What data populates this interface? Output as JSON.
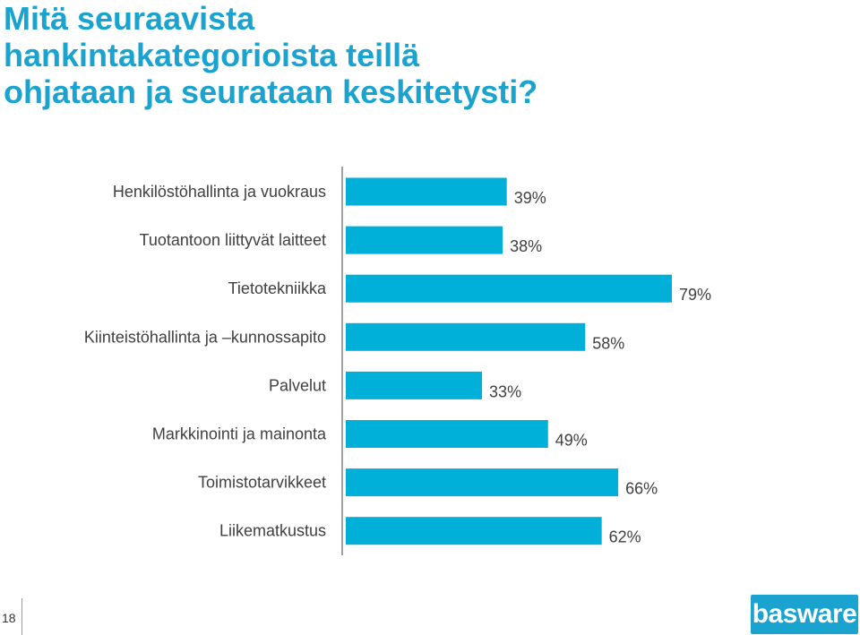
{
  "title_lines": [
    "Mitä seuraavista",
    "hankintakategorioista teillä",
    "ohjataan ja seurataan keskitetysti?"
  ],
  "colors": {
    "title": "#1aa3cf",
    "bar": "#00b0d8",
    "text": "#404040",
    "axis": "#808080"
  },
  "chart_data": {
    "type": "bar",
    "orientation": "horizontal",
    "title": "Mitä seuraavista hankintakategorioista teillä ohjataan ja seurataan keskitetysti?",
    "categories": [
      "Henkilöstöhallinta ja vuokraus",
      "Tuotantoon liittyvät laitteet",
      "Tietotekniikka",
      "Kiinteistöhallinta ja –kunnossapito",
      "Palvelut",
      "Markkinointi ja mainonta",
      "Toimistotarvikkeet",
      "Liikematkustus"
    ],
    "values": [
      39,
      38,
      79,
      58,
      33,
      49,
      66,
      62
    ],
    "value_labels": [
      "39%",
      "38%",
      "79%",
      "58%",
      "33%",
      "49%",
      "66%",
      "62%"
    ],
    "xlim": [
      0,
      100
    ],
    "xlabel": "",
    "ylabel": "",
    "grid": false,
    "legend": "none"
  },
  "footer": {
    "page_number": "18",
    "logo_text": "basware"
  }
}
